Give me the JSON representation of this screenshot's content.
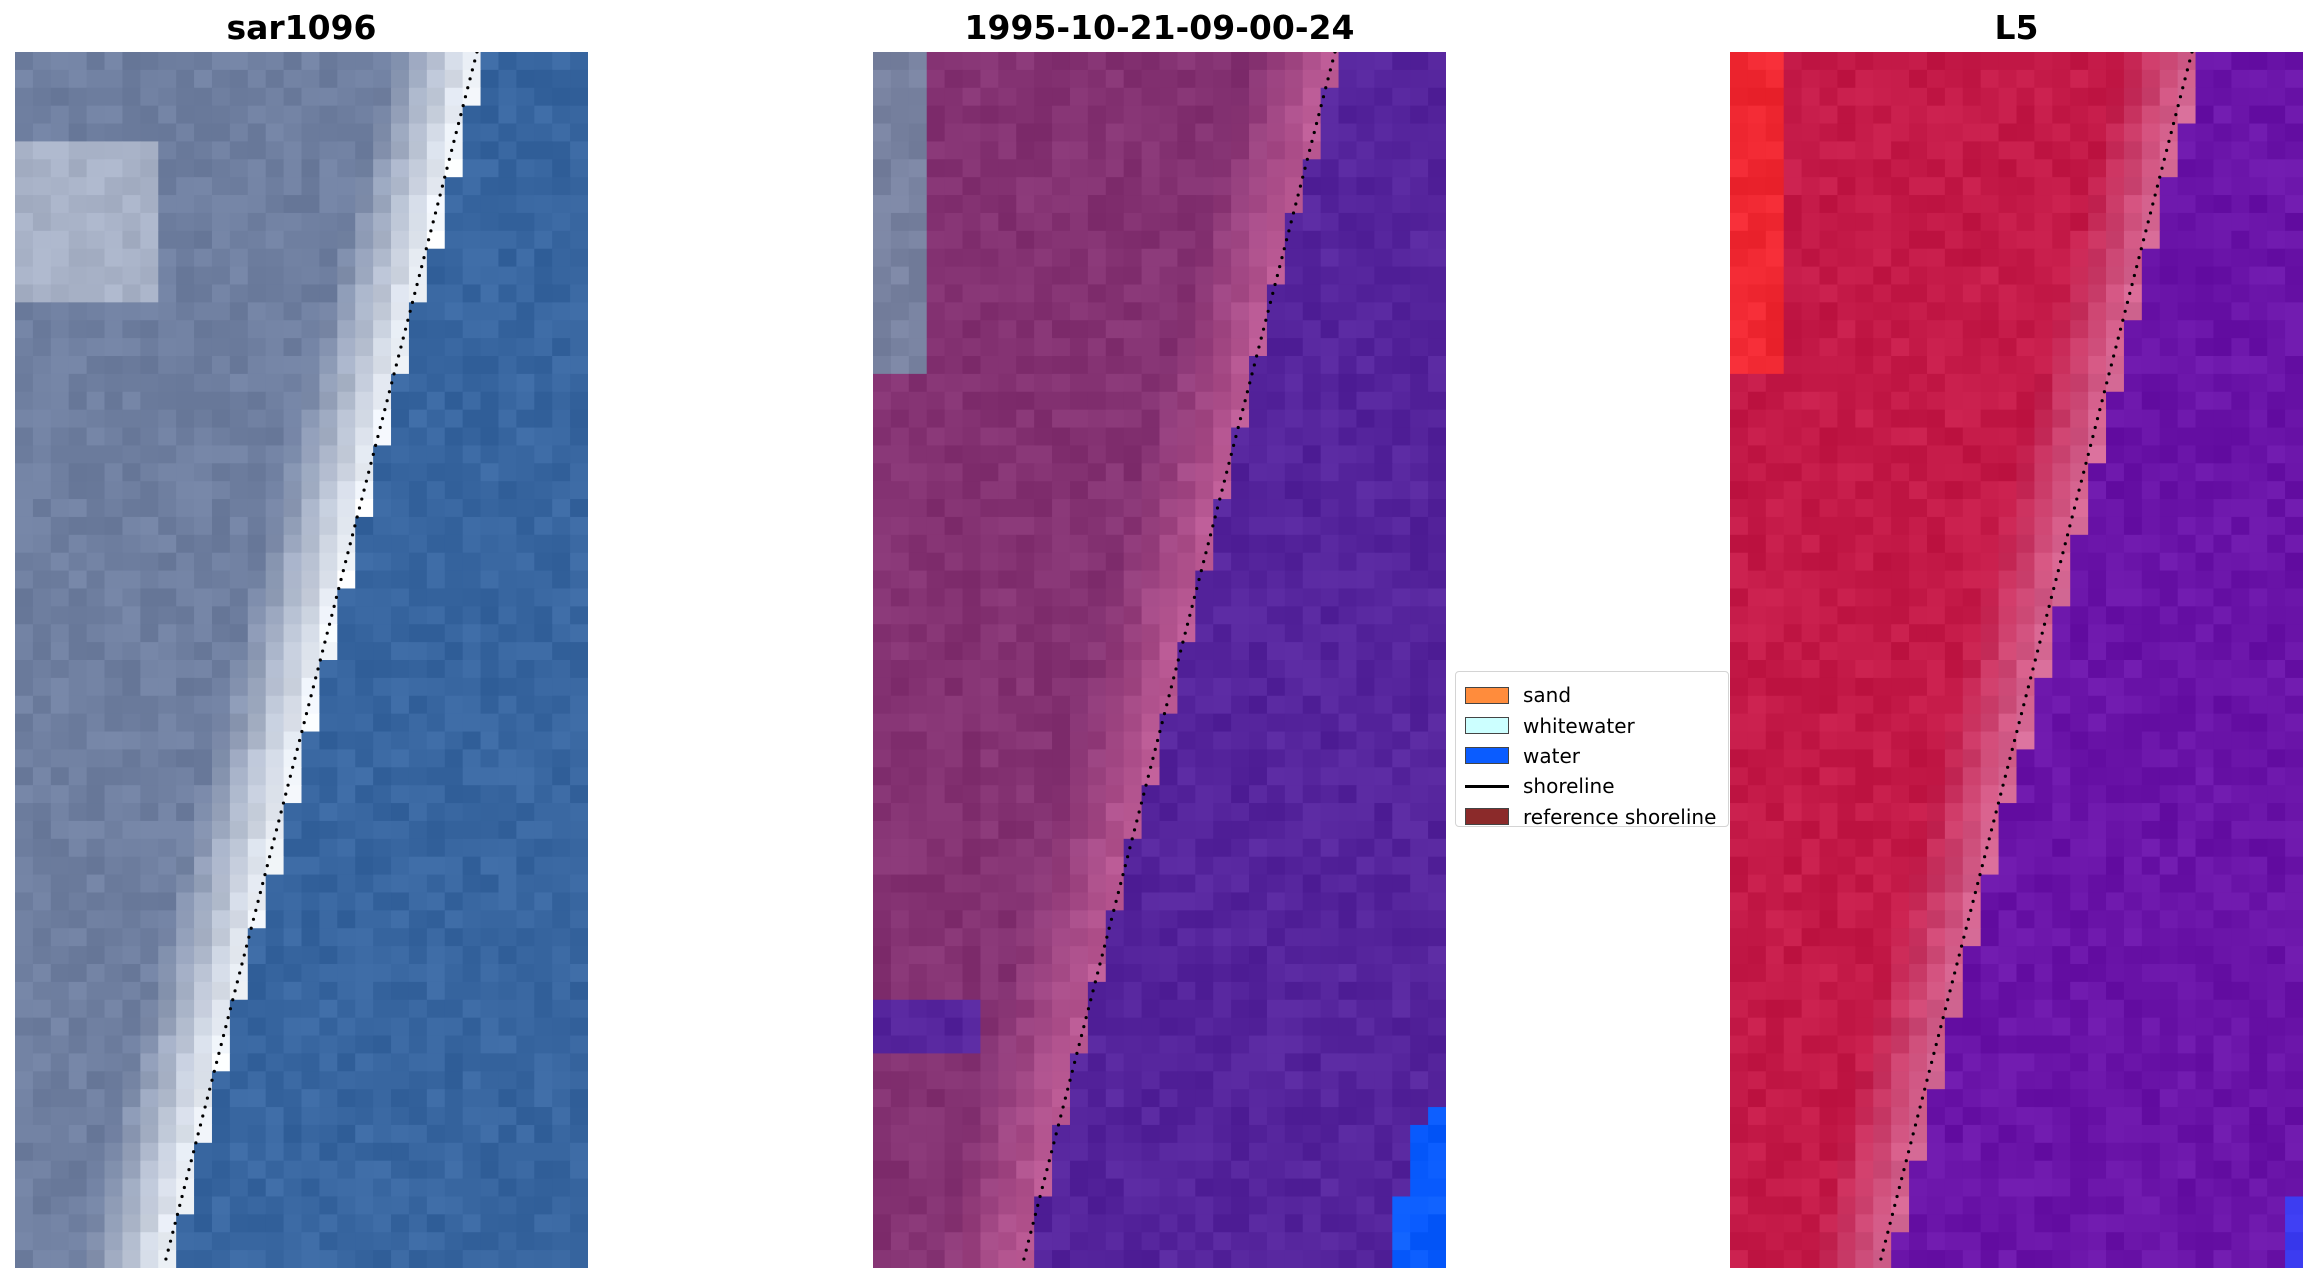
{
  "panels": [
    {
      "title": "sar1096",
      "style": "rgb"
    },
    {
      "title": "1995-10-21-09-00-24",
      "style": "classified"
    },
    {
      "title": "L5",
      "style": "false-color"
    }
  ],
  "legend": {
    "items": [
      {
        "label": "sand",
        "kind": "patch",
        "color": "#ff8c3c"
      },
      {
        "label": "whitewater",
        "kind": "patch",
        "color": "#ccffff"
      },
      {
        "label": "water",
        "kind": "patch",
        "color": "#0a5cff"
      },
      {
        "label": "shoreline",
        "kind": "line",
        "color": "#000000"
      },
      {
        "label": "reference shoreline",
        "kind": "patch",
        "color": "#8b2a2a"
      }
    ]
  },
  "colors": {
    "land_rgb": "#6f7fa0",
    "surf_rgb": "#f2f6fb",
    "water_rgb": "#3866a0",
    "land_classified": "#843272",
    "surf_classified": "#be5c96",
    "water_classified": "#55249c",
    "land_false": "#c41a48",
    "surf_false": "#d46490",
    "water_false": "#6a14a8"
  }
}
